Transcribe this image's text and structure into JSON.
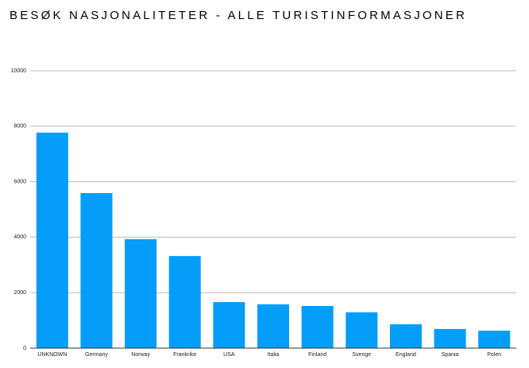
{
  "chart_data": {
    "type": "bar",
    "title": "BESØK NASJONALITETER - ALLE TURISTINFORMASJONER",
    "categories": [
      "UNKNOWN",
      "Germany",
      "Norway",
      "Frankrike",
      "USA",
      "Italia",
      "Finland",
      "Sverige",
      "England",
      "Spania",
      "Polen"
    ],
    "values": [
      7770,
      5590,
      3930,
      3320,
      1660,
      1580,
      1520,
      1290,
      860,
      690,
      630
    ],
    "color": "#049ef8",
    "ylim": [
      0,
      10000
    ],
    "yticks": [
      0,
      2000,
      4000,
      6000,
      8000,
      10000
    ],
    "grid": true
  }
}
